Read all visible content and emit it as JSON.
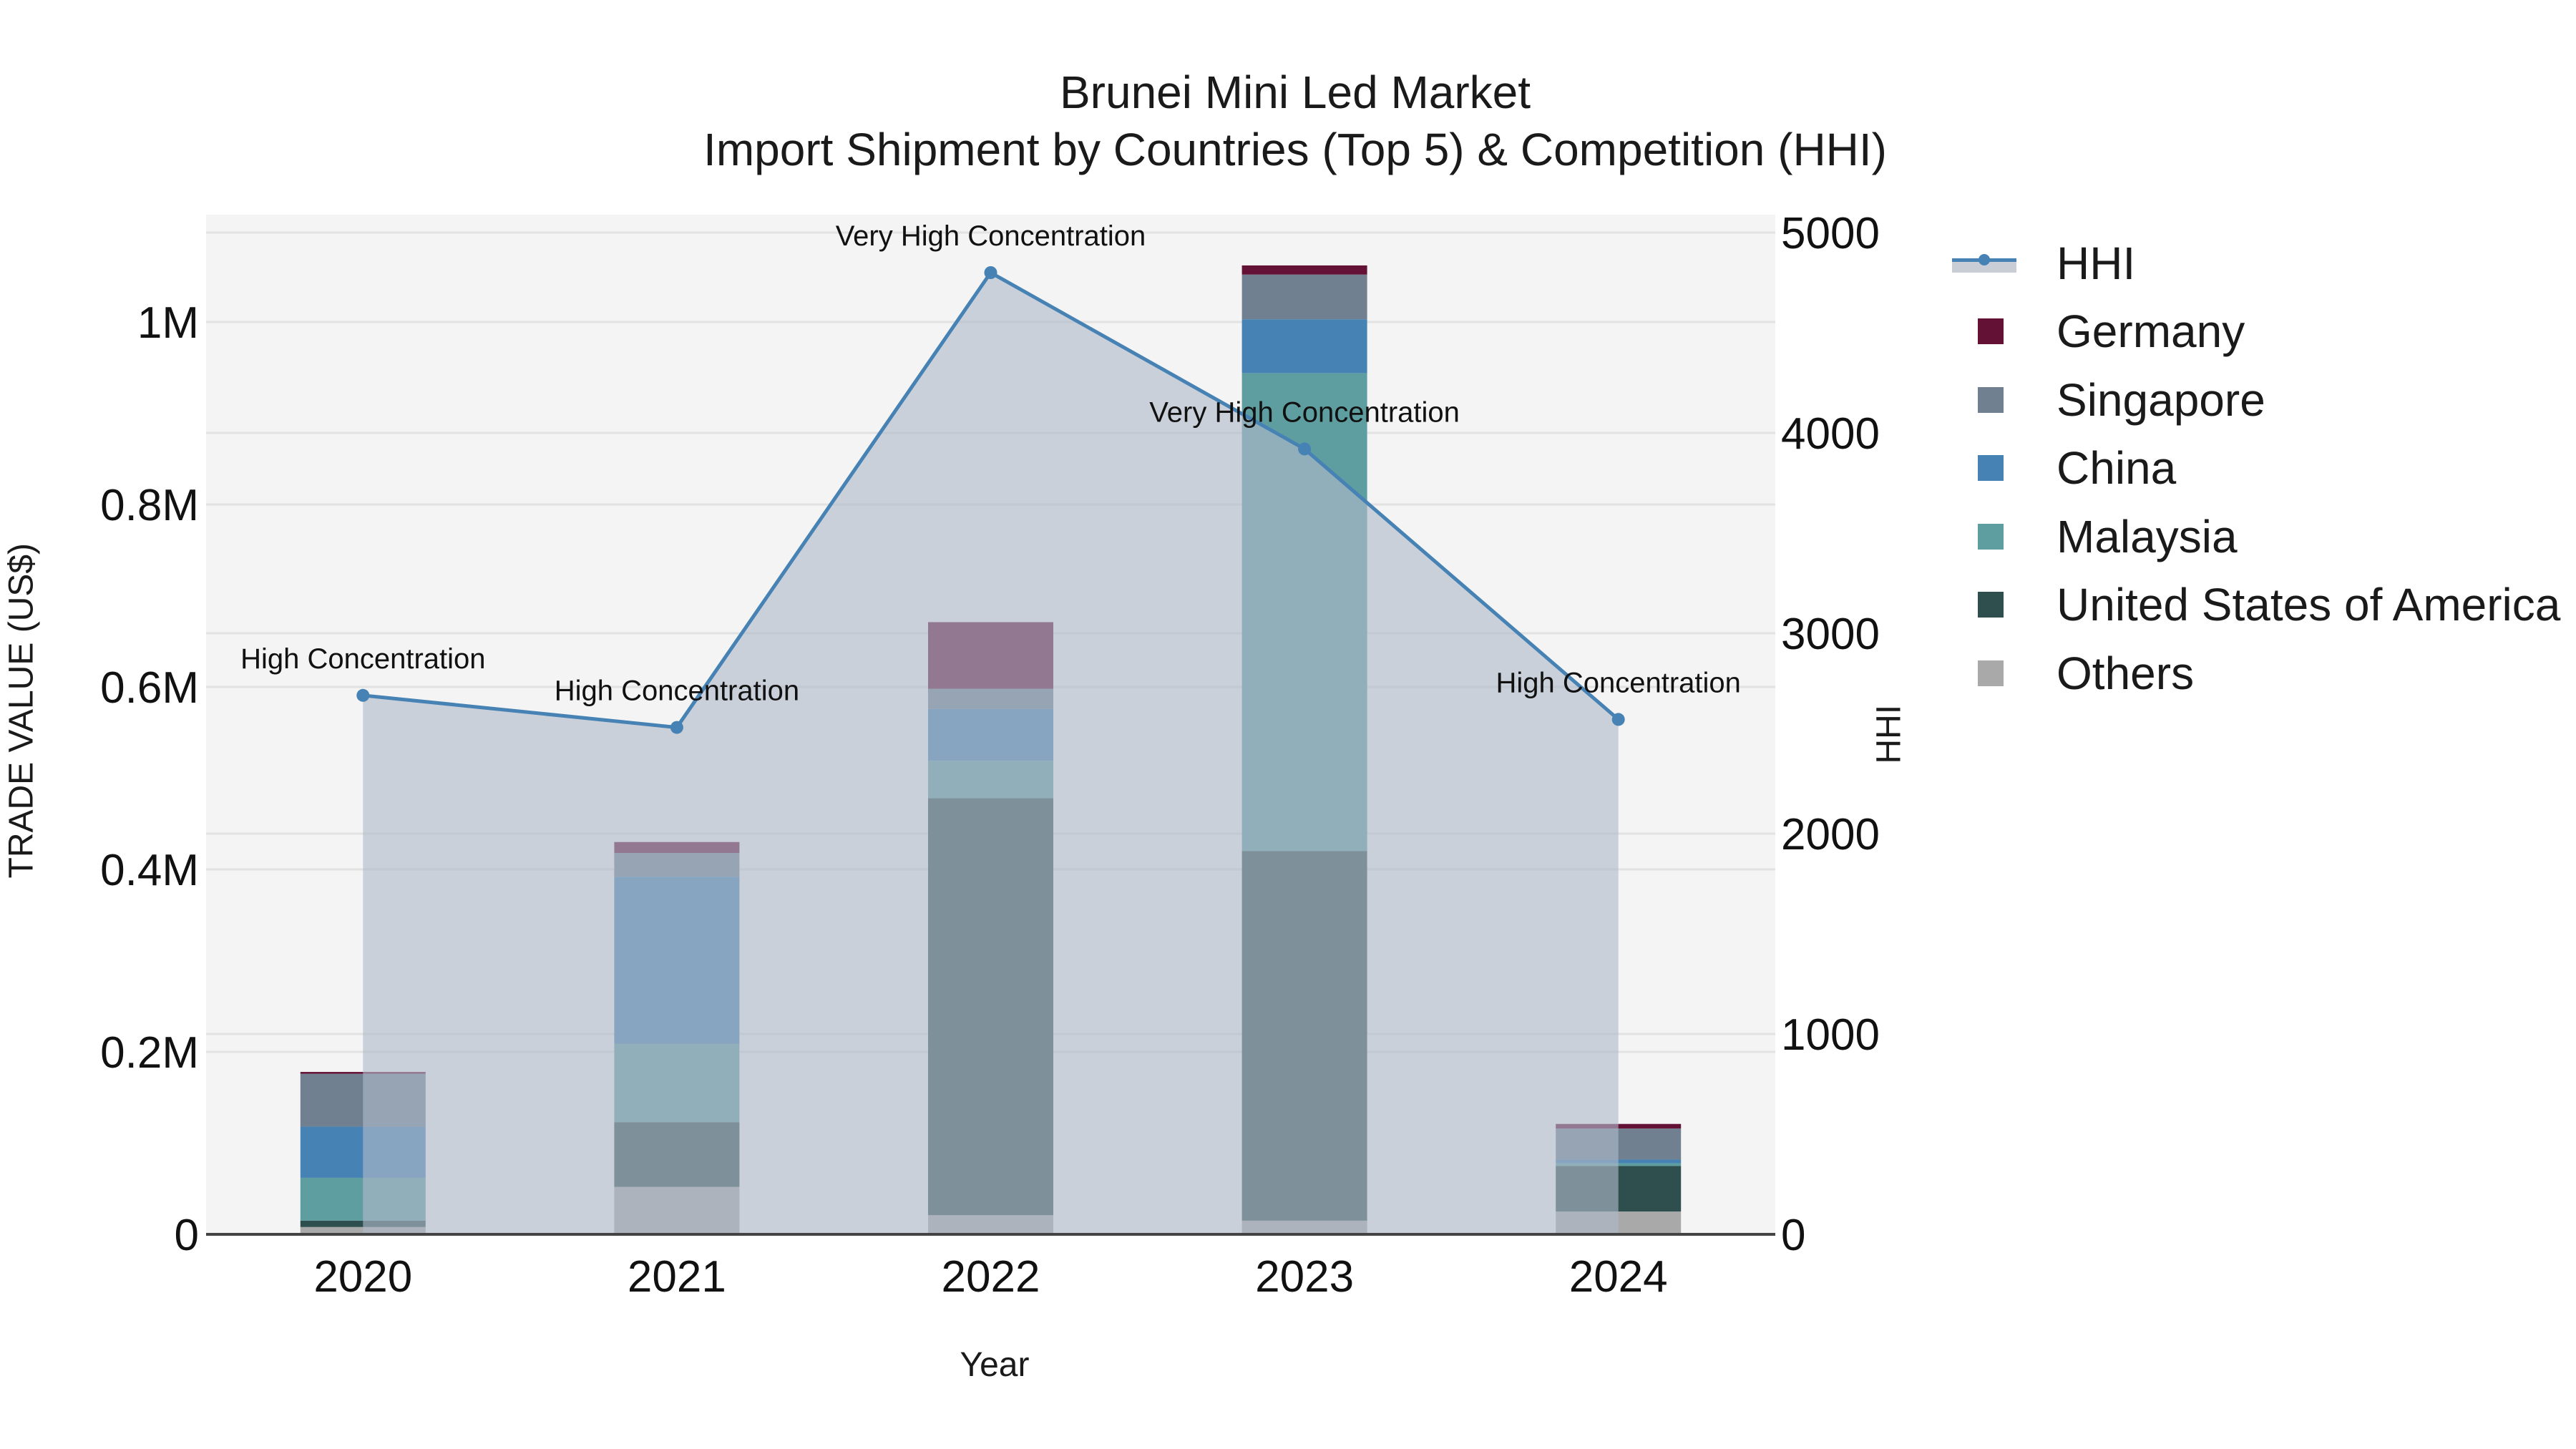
{
  "title": {
    "line1": "Brunei Mini Led Market",
    "line2": "Import Shipment by Countries (Top 5) & Competition (HHI)"
  },
  "axes": {
    "x_title": "Year",
    "y_left_title": "TRADE VALUE (US$)",
    "y_right_title": "HHI",
    "y_left_ticks": [
      "0",
      "0.2M",
      "0.4M",
      "0.6M",
      "0.8M",
      "1M"
    ],
    "y_right_ticks": [
      "0",
      "1000",
      "2000",
      "3000",
      "4000",
      "5000"
    ]
  },
  "legend": {
    "items": [
      {
        "label": "HHI",
        "type": "line",
        "color": "#4682b4"
      },
      {
        "label": "Germany",
        "type": "bar",
        "color": "#631235"
      },
      {
        "label": "Singapore",
        "type": "bar",
        "color": "#708090"
      },
      {
        "label": "China",
        "type": "bar",
        "color": "#4682b4"
      },
      {
        "label": "Malaysia",
        "type": "bar",
        "color": "#5f9ea0"
      },
      {
        "label": "United States of America",
        "type": "bar",
        "color": "#2f4f4f"
      },
      {
        "label": "Others",
        "type": "bar",
        "color": "#a9a9a9"
      }
    ]
  },
  "colors": {
    "plot_bg": "#f4f4f4",
    "grid": "#e2e2e2",
    "hhi_line": "#4682b4",
    "hhi_fill": "rgba(176,186,201,0.62)",
    "axis_line": "#444444"
  },
  "chart_data": {
    "type": "bar",
    "subtype": "stacked bar + line (dual axis)",
    "title": "Brunei Mini Led Market — Import Shipment by Countries (Top 5) & Competition (HHI)",
    "xlabel": "Year",
    "ylabel": "TRADE VALUE (US$)",
    "y2label": "HHI",
    "categories": [
      "2020",
      "2021",
      "2022",
      "2023",
      "2024"
    ],
    "ylim": [
      0,
      1120000
    ],
    "y2lim": [
      0,
      5090
    ],
    "stack_order_bottom_to_top": [
      "Others",
      "United States of America",
      "Malaysia",
      "China",
      "Singapore",
      "Germany"
    ],
    "series": [
      {
        "name": "Others",
        "axis": "left",
        "color": "#a9a9a9",
        "values": [
          8000,
          52000,
          21000,
          15000,
          25000
        ]
      },
      {
        "name": "United States of America",
        "axis": "left",
        "color": "#2f4f4f",
        "values": [
          7000,
          71000,
          457000,
          405000,
          50000
        ]
      },
      {
        "name": "Malaysia",
        "axis": "left",
        "color": "#5f9ea0",
        "values": [
          47000,
          86000,
          41000,
          524000,
          3000
        ]
      },
      {
        "name": "China",
        "axis": "left",
        "color": "#4682b4",
        "values": [
          56000,
          183000,
          57000,
          59000,
          4000
        ]
      },
      {
        "name": "Singapore",
        "axis": "left",
        "color": "#708090",
        "values": [
          58000,
          26000,
          22000,
          49000,
          34000
        ]
      },
      {
        "name": "Germany",
        "axis": "left",
        "color": "#631235",
        "values": [
          2000,
          12000,
          73000,
          10000,
          5000
        ]
      },
      {
        "name": "HHI",
        "axis": "right",
        "type": "line+area",
        "color": "#4682b4",
        "values": [
          2690,
          2530,
          4800,
          3920,
          2570
        ]
      }
    ],
    "annotations": [
      {
        "x": "2020",
        "text": "High Concentration"
      },
      {
        "x": "2021",
        "text": "High Concentration"
      },
      {
        "x": "2022",
        "text": "Very High Concentration"
      },
      {
        "x": "2023",
        "text": "Very High Concentration"
      },
      {
        "x": "2024",
        "text": "High Concentration"
      }
    ],
    "grid": true,
    "legend_position": "right"
  }
}
